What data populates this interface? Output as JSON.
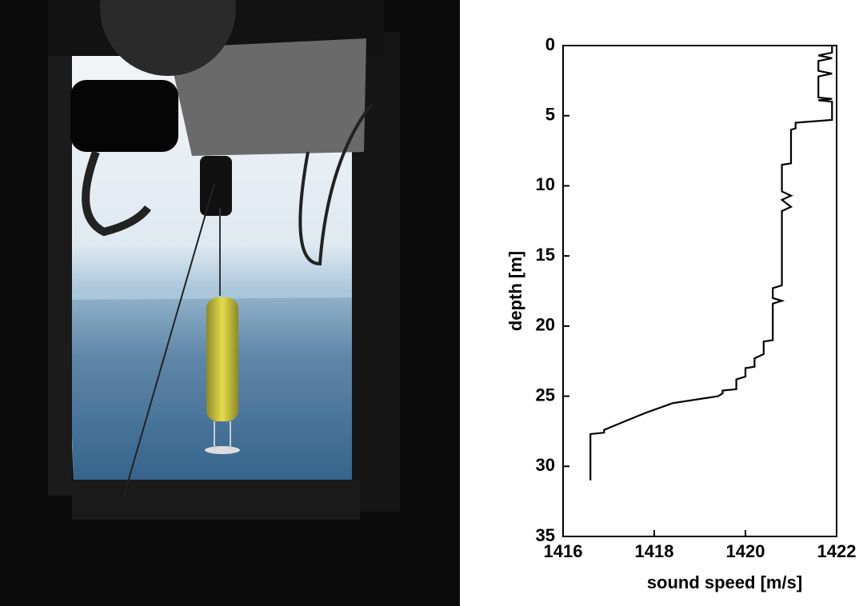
{
  "chart_data": {
    "type": "line",
    "xlabel": "sound speed [m/s]",
    "ylabel": "depth [m]",
    "xlim": [
      1416,
      1422
    ],
    "ylim": [
      0,
      35
    ],
    "y_inverted": true,
    "xticks": [
      1416,
      1418,
      1420,
      1422
    ],
    "yticks": [
      0,
      5,
      10,
      15,
      20,
      25,
      30,
      35
    ],
    "color": "#000000",
    "x": [
      1421.9,
      1421.9,
      1421.6,
      1421.9,
      1421.6,
      1421.6,
      1421.9,
      1421.6,
      1421.6,
      1421.9,
      1421.6,
      1421.9,
      1421.9,
      1421.1,
      1421.1,
      1421.0,
      1421.0,
      1420.8,
      1420.8,
      1421.0,
      1420.8,
      1421.0,
      1420.8,
      1420.8,
      1420.6,
      1420.6,
      1420.8,
      1420.6,
      1420.6,
      1420.4,
      1420.4,
      1420.2,
      1420.2,
      1420.0,
      1420.0,
      1419.8,
      1419.8,
      1419.5,
      1419.5,
      1419.4,
      1418.4,
      1417.8,
      1417.2,
      1416.9,
      1416.9,
      1416.6,
      1416.6
    ],
    "values": [
      0,
      0.5,
      0.7,
      0.9,
      1.1,
      1.8,
      2.0,
      2.2,
      3.7,
      3.8,
      3.9,
      4.0,
      5.3,
      5.5,
      5.9,
      6.0,
      8.4,
      8.5,
      10.4,
      10.7,
      11.0,
      11.5,
      11.8,
      17.1,
      17.3,
      18.0,
      18.2,
      18.4,
      21.0,
      21.1,
      22.0,
      22.3,
      22.9,
      23.0,
      23.6,
      23.8,
      24.5,
      24.6,
      24.8,
      25.0,
      25.5,
      26.2,
      27.0,
      27.4,
      27.6,
      27.7,
      31.0
    ]
  }
}
